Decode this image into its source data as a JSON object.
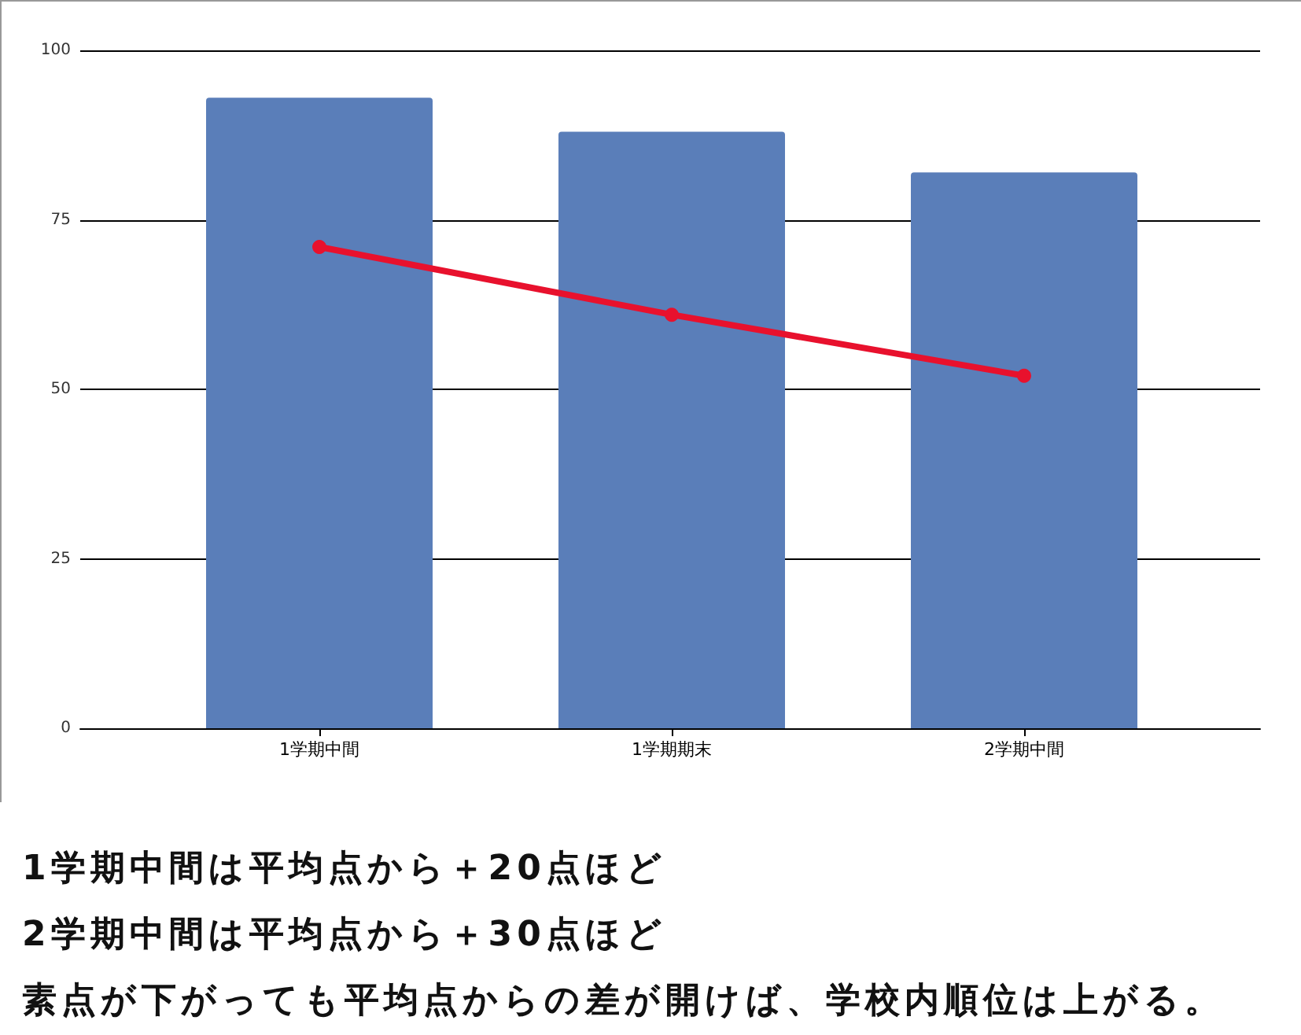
{
  "chart_data": {
    "type": "bar",
    "categories": [
      "1学期中間",
      "1学期期末",
      "2学期中間"
    ],
    "series": [
      {
        "color": "#5a7eb9",
        "values": [
          93,
          88,
          82
        ]
      },
      {
        "type": "line",
        "color": "#e8112d",
        "values": [
          71,
          61,
          52
        ]
      }
    ],
    "marker": "circle",
    "line_style": "solid",
    "ylim": [
      0,
      100
    ],
    "yticks": [
      0,
      25,
      50,
      75,
      100
    ],
    "grid": "y",
    "annotations": [
      "1学期中間は平均点から＋20点ほど",
      "2学期中間は平均点から＋30点ほど",
      "素点が下がっても平均点からの差が開けば、学校内順位は上がる。"
    ]
  }
}
